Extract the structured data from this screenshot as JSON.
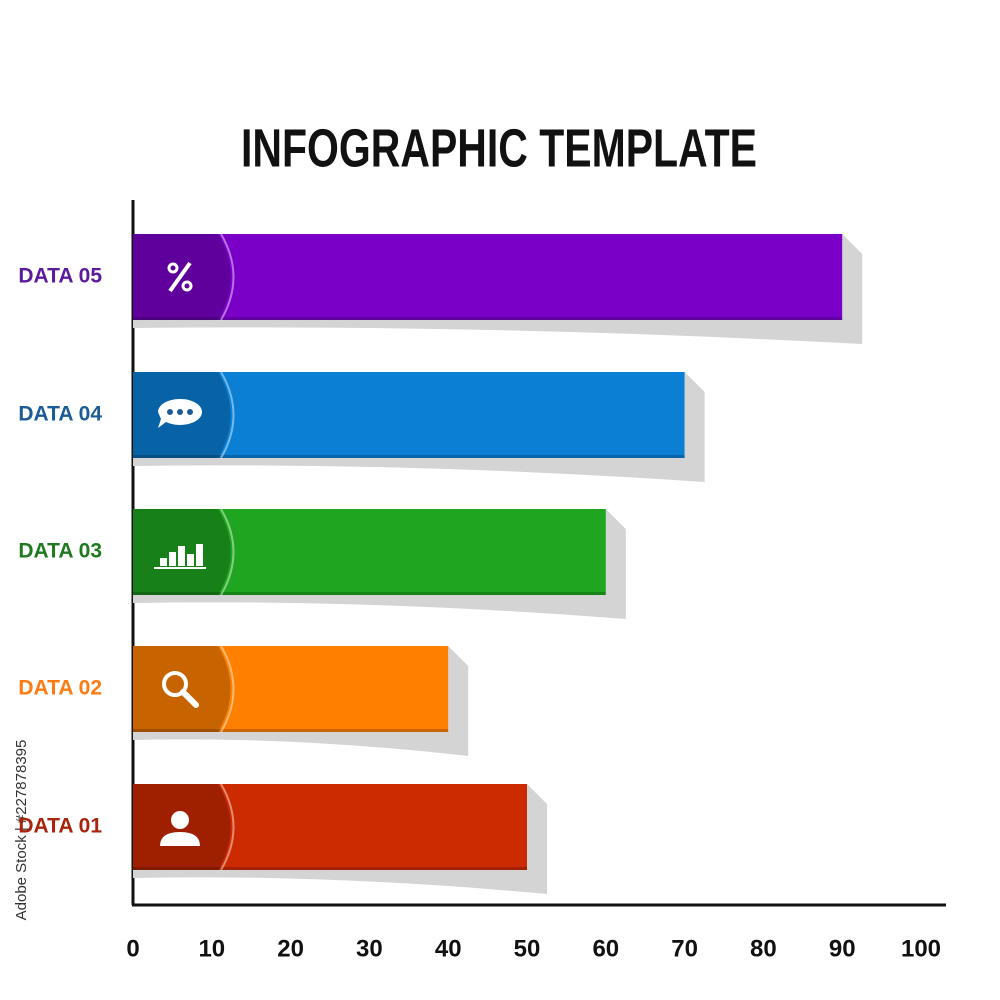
{
  "chart_data": {
    "type": "barh",
    "title": "INFOGRAPHIC TEMPLATE",
    "categories": [
      "DATA 05",
      "DATA 04",
      "DATA 03",
      "DATA 02",
      "DATA 01"
    ],
    "values": [
      90,
      70,
      60,
      40,
      50
    ],
    "colors": [
      "#7a00c8",
      "#0a7fd4",
      "#1fa51f",
      "#ff8000",
      "#cc2a00"
    ],
    "label_colors": [
      "#5c1a9c",
      "#1b5c96",
      "#1f7a1f",
      "#ff7a10",
      "#a8240c"
    ],
    "xlim": [
      0,
      100
    ],
    "xticks": [
      0,
      10,
      20,
      30,
      40,
      50,
      60,
      70,
      80,
      90,
      100
    ],
    "watermark": "Adobe Stock | #227878395"
  }
}
